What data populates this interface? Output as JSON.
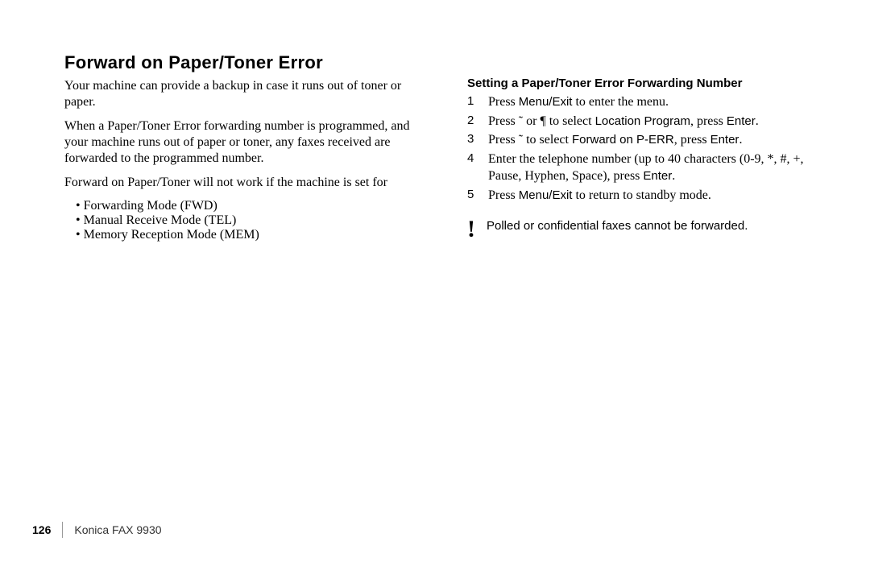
{
  "left": {
    "title": "Forward on Paper/Toner Error",
    "p1": "Your machine can provide a backup in case it runs out of toner or paper.",
    "p2": "When a Paper/Toner Error forwarding number is programmed, and your machine runs out of paper or toner, any faxes received are forwarded to the programmed number.",
    "p3": "Forward on Paper/Toner will not work if the machine is set for",
    "modes": [
      "Forwarding Mode (FWD)",
      "Manual Receive Mode (TEL)",
      "Memory Reception Mode (MEM)"
    ]
  },
  "right": {
    "subhead": "Setting a Paper/Toner Error Forwarding Number",
    "s1_a": "Press ",
    "s1_key": "Menu/Exit",
    "s1_b": " to enter the menu.",
    "s2_a": "Press ",
    "s2_sym1": "˜",
    "s2_mid": " or ",
    "s2_sym2": "¶",
    "s2_b": " to select ",
    "s2_sel": "Location Program",
    "s2_c": ", press ",
    "s2_enter": "Enter",
    "s2_d": ".",
    "s3_a": "Press ",
    "s3_sym": "˜",
    "s3_b": " to select ",
    "s3_sel": "Forward on P-ERR",
    "s3_c": ", press ",
    "s3_enter": "Enter",
    "s3_d": ".",
    "s4_a": "Enter the telephone number (up to 40 characters (0-9, *, #, +, Pause, Hyphen, Space), press ",
    "s4_enter": "Enter",
    "s4_b": ".",
    "s5_a": "Press ",
    "s5_key": "Menu/Exit",
    "s5_b": " to return to standby mode.",
    "note_icon": "!",
    "note": "Polled or confidential faxes cannot be forwarded."
  },
  "footer": {
    "page": "126",
    "product": "Konica FAX 9930"
  }
}
